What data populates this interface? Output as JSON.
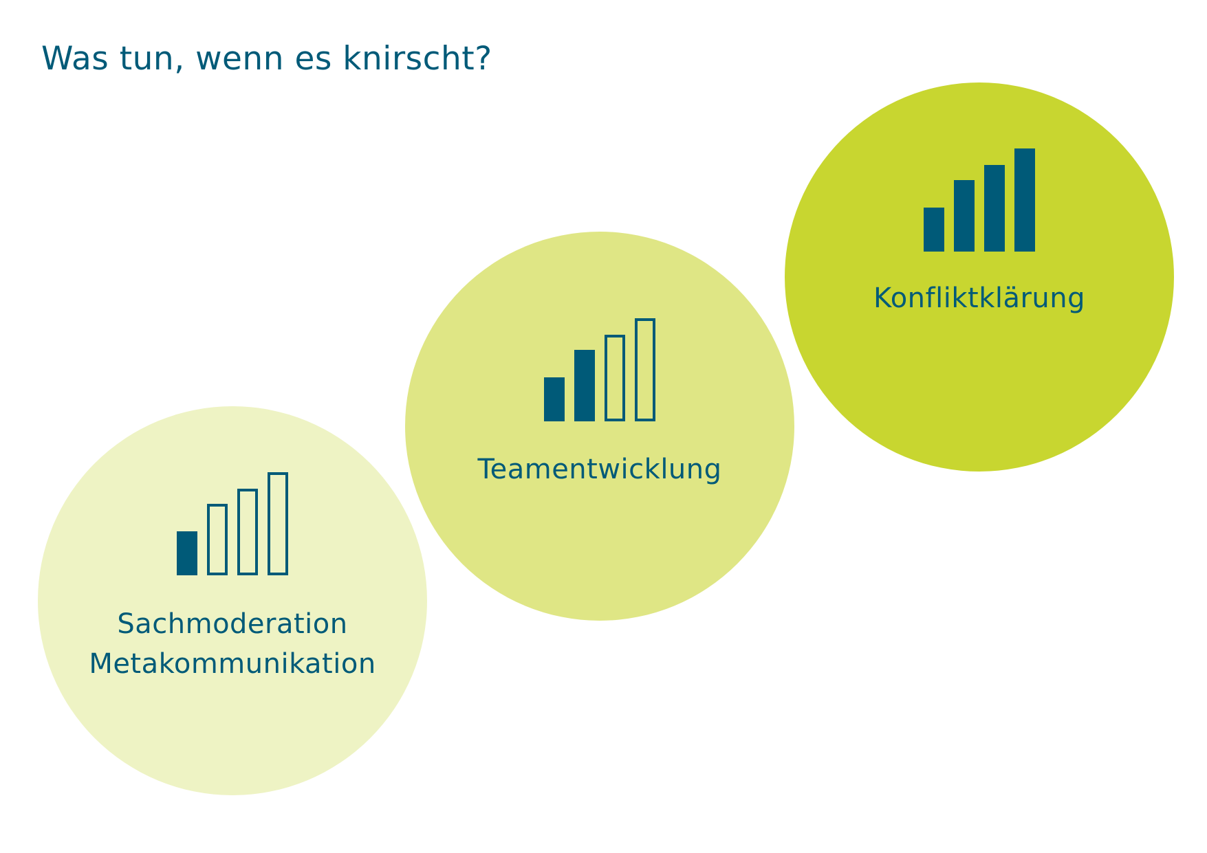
{
  "title": "Was tun, wenn es knirscht?",
  "colors": {
    "text": "#005a78",
    "bar": "#005a78",
    "circle_light": "#eef3c4",
    "circle_medium": "#dfe685",
    "circle_strong": "#c8d630"
  },
  "steps": [
    {
      "name": "step-1",
      "lines": [
        "Sachmoderation",
        "Metakommunikation"
      ],
      "level": 1,
      "max_level": 4,
      "circle_color": "#eef3c4",
      "icon": "signal-bars-1-of-4-icon"
    },
    {
      "name": "step-2",
      "lines": [
        "Teamentwicklung"
      ],
      "level": 2,
      "max_level": 4,
      "circle_color": "#dfe685",
      "icon": "signal-bars-2-of-4-icon"
    },
    {
      "name": "step-3",
      "lines": [
        "Konfliktklärung"
      ],
      "level": 4,
      "max_level": 4,
      "circle_color": "#c8d630",
      "icon": "signal-bars-4-of-4-icon"
    }
  ]
}
